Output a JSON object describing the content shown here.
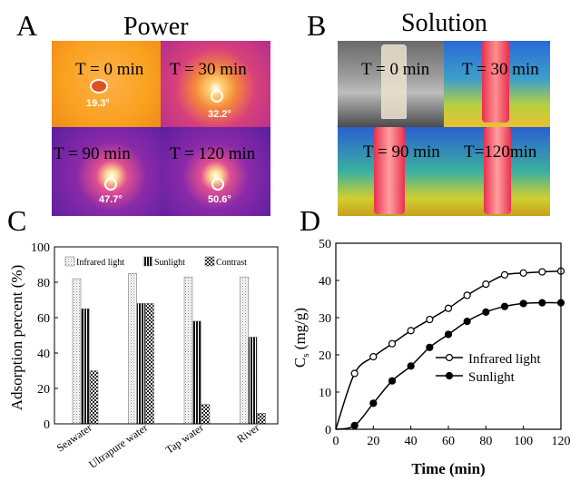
{
  "panels": {
    "A": {
      "letter": "A",
      "title": "Power",
      "tiles": [
        {
          "label": "T = 0 min",
          "temp": "19.3°"
        },
        {
          "label": "T = 30 min",
          "temp": "32.2°"
        },
        {
          "label": "T = 90 min",
          "temp": "47.7°"
        },
        {
          "label": "T = 120 min",
          "temp": "50.6°"
        }
      ]
    },
    "B": {
      "letter": "B",
      "title": "Solution",
      "tiles": [
        {
          "label": "T = 0 min"
        },
        {
          "label": "T = 30 min"
        },
        {
          "label": "T = 90 min"
        },
        {
          "label": "T=120min"
        }
      ]
    },
    "C": {
      "letter": "C"
    },
    "D": {
      "letter": "D"
    }
  },
  "colors": {
    "sunlight_bar": "#1a1a1a",
    "infrared_bar": "#d8d8d8",
    "contrast_bar": "#555555",
    "line": "#000000"
  },
  "chart_data": [
    {
      "type": "bar",
      "panel": "C",
      "categories": [
        "Seawater",
        "Ultrapure water",
        "Tap water",
        "River"
      ],
      "series": [
        {
          "name": "Infrared light",
          "values": [
            82,
            85,
            83,
            83
          ]
        },
        {
          "name": "Sunlight",
          "values": [
            65,
            68,
            58,
            49
          ]
        },
        {
          "name": "Contrast",
          "values": [
            30,
            68,
            11,
            6
          ]
        }
      ],
      "ylabel": "Adsorption percent (%)",
      "ylim": [
        0,
        100
      ],
      "yticks": [
        0,
        20,
        40,
        60,
        80,
        100
      ],
      "legend": "top"
    },
    {
      "type": "line",
      "panel": "D",
      "xlabel": "Time (min)",
      "ylabel": "C",
      "ylabel_sub": "s",
      "ylabel_unit": " (mg/g)",
      "xlim": [
        0,
        120
      ],
      "ylim": [
        0,
        50
      ],
      "xticks": [
        0,
        20,
        40,
        60,
        80,
        100,
        120
      ],
      "yticks": [
        0,
        10,
        20,
        30,
        40,
        50
      ],
      "series": [
        {
          "name": "Infrared light",
          "marker": "open-circle",
          "x": [
            0,
            10,
            20,
            30,
            40,
            50,
            60,
            70,
            80,
            90,
            100,
            110,
            120
          ],
          "y": [
            0,
            15,
            19.5,
            23,
            26.5,
            29.5,
            32.5,
            36,
            39,
            41.5,
            42,
            42.3,
            42.5
          ]
        },
        {
          "name": "Sunlight",
          "marker": "filled-circle",
          "x": [
            0,
            10,
            20,
            30,
            40,
            50,
            60,
            70,
            80,
            90,
            100,
            110,
            120
          ],
          "y": [
            0,
            1,
            7,
            13,
            17,
            22,
            25.5,
            29,
            31.5,
            33,
            33.8,
            34,
            34
          ]
        }
      ],
      "legend": "right"
    }
  ]
}
